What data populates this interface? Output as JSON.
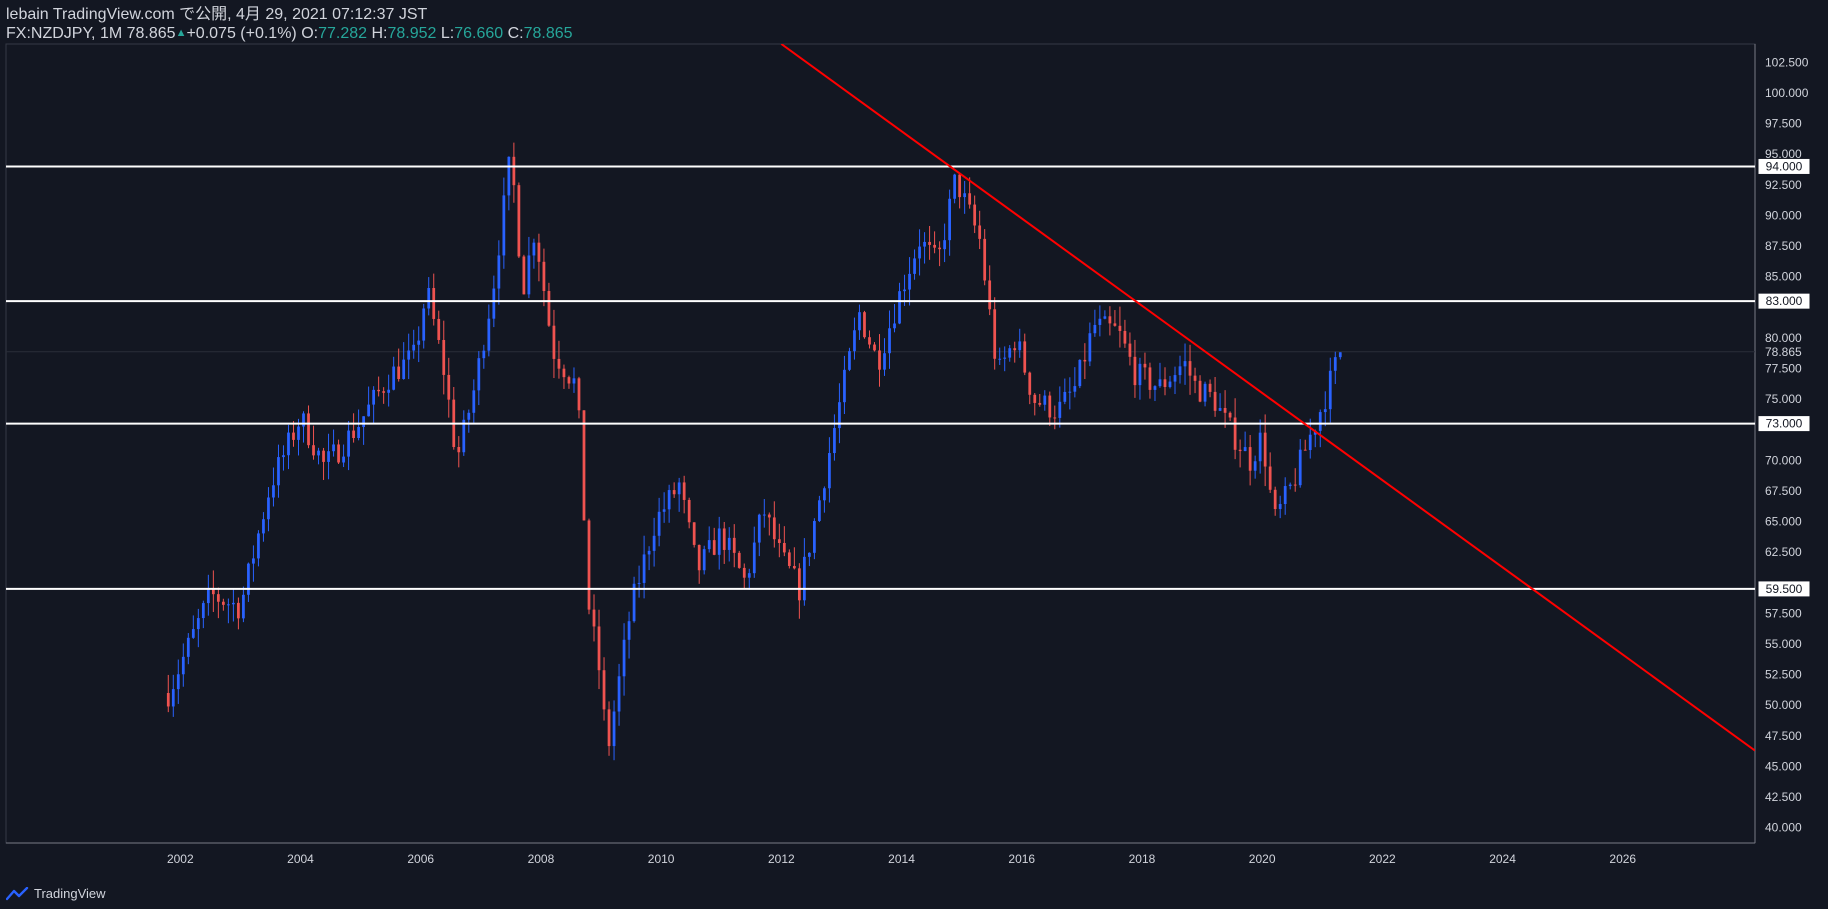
{
  "header": {
    "publisher_line": "lebain TradingView.com で公開, 4月 29, 2021 07:12:37 JST",
    "symbol": "FX:NZDJPY, 1M 78.865",
    "change": "+0.075 (+0.1%)",
    "o_label": "O:",
    "o_value": "77.282",
    "h_label": "H:",
    "h_value": "78.952",
    "l_label": "L:",
    "l_value": "76.660",
    "c_label": "C:",
    "c_value": "78.865"
  },
  "footer": {
    "brand": "TradingView",
    "logo_icon": "tradingview-logo-icon"
  },
  "colors": {
    "background": "#131722",
    "up": "#2962ff",
    "down": "#ef5350",
    "level": "#ffffff",
    "trendline": "#ff0000",
    "axis_text": "#d1d4dc"
  },
  "chart_data": {
    "type": "candlestick",
    "interval": "1M",
    "symbol": "FX:NZDJPY",
    "ylim": [
      38.75,
      104.0
    ],
    "y_ticks": [
      40.0,
      42.5,
      45.0,
      47.5,
      50.0,
      52.5,
      55.0,
      57.5,
      60.0,
      62.5,
      65.0,
      67.5,
      70.0,
      72.5,
      75.0,
      77.5,
      80.0,
      82.5,
      85.0,
      87.5,
      90.0,
      92.5,
      95.0,
      97.5,
      100.0,
      102.5
    ],
    "xlim": [
      1999.1,
      2028.2
    ],
    "x_ticks": [
      2002,
      2004,
      2006,
      2008,
      2010,
      2012,
      2014,
      2016,
      2018,
      2020,
      2022,
      2024,
      2026
    ],
    "last_price": 78.865,
    "horizontal_levels": [
      94.0,
      83.0,
      73.0,
      59.5
    ],
    "trendline": {
      "start": [
        2012.0,
        104.0
      ],
      "end": [
        2028.2,
        46.3
      ]
    },
    "price_path": [
      [
        2001.8,
        51.0
      ],
      [
        2002.5,
        59.0
      ],
      [
        2003.0,
        58.0
      ],
      [
        2003.5,
        68.0
      ],
      [
        2004.0,
        73.5
      ],
      [
        2004.4,
        69.5
      ],
      [
        2004.9,
        72.5
      ],
      [
        2005.5,
        77.0
      ],
      [
        2005.9,
        78.5
      ],
      [
        2006.1,
        84.0
      ],
      [
        2006.4,
        77.0
      ],
      [
        2006.6,
        70.0
      ],
      [
        2006.9,
        76.0
      ],
      [
        2007.2,
        84.0
      ],
      [
        2007.5,
        95.0
      ],
      [
        2007.7,
        84.0
      ],
      [
        2007.9,
        89.0
      ],
      [
        2008.2,
        79.0
      ],
      [
        2008.6,
        76.0
      ],
      [
        2008.8,
        58.0
      ],
      [
        2009.0,
        52.0
      ],
      [
        2009.1,
        46.0
      ],
      [
        2009.5,
        58.0
      ],
      [
        2009.9,
        65.0
      ],
      [
        2010.3,
        68.0
      ],
      [
        2010.6,
        61.0
      ],
      [
        2011.0,
        64.0
      ],
      [
        2011.4,
        60.0
      ],
      [
        2011.7,
        66.0
      ],
      [
        2012.0,
        62.0
      ],
      [
        2012.3,
        59.5
      ],
      [
        2012.6,
        66.0
      ],
      [
        2012.9,
        73.0
      ],
      [
        2013.3,
        82.0
      ],
      [
        2013.6,
        78.0
      ],
      [
        2014.0,
        84.0
      ],
      [
        2014.3,
        88.0
      ],
      [
        2014.6,
        86.0
      ],
      [
        2014.9,
        93.0
      ],
      [
        2015.3,
        88.0
      ],
      [
        2015.6,
        77.0
      ],
      [
        2015.9,
        80.0
      ],
      [
        2016.2,
        75.0
      ],
      [
        2016.6,
        74.0
      ],
      [
        2016.9,
        76.0
      ],
      [
        2017.2,
        81.0
      ],
      [
        2017.6,
        80.5
      ],
      [
        2017.9,
        77.0
      ],
      [
        2018.3,
        76.0
      ],
      [
        2018.7,
        78.0
      ],
      [
        2018.9,
        76.0
      ],
      [
        2019.2,
        75.0
      ],
      [
        2019.4,
        73.0
      ],
      [
        2019.8,
        70.0
      ],
      [
        2020.0,
        72.0
      ],
      [
        2020.2,
        65.0
      ],
      [
        2020.5,
        68.0
      ],
      [
        2020.8,
        72.0
      ],
      [
        2021.0,
        74.5
      ],
      [
        2021.3,
        78.9
      ]
    ]
  }
}
